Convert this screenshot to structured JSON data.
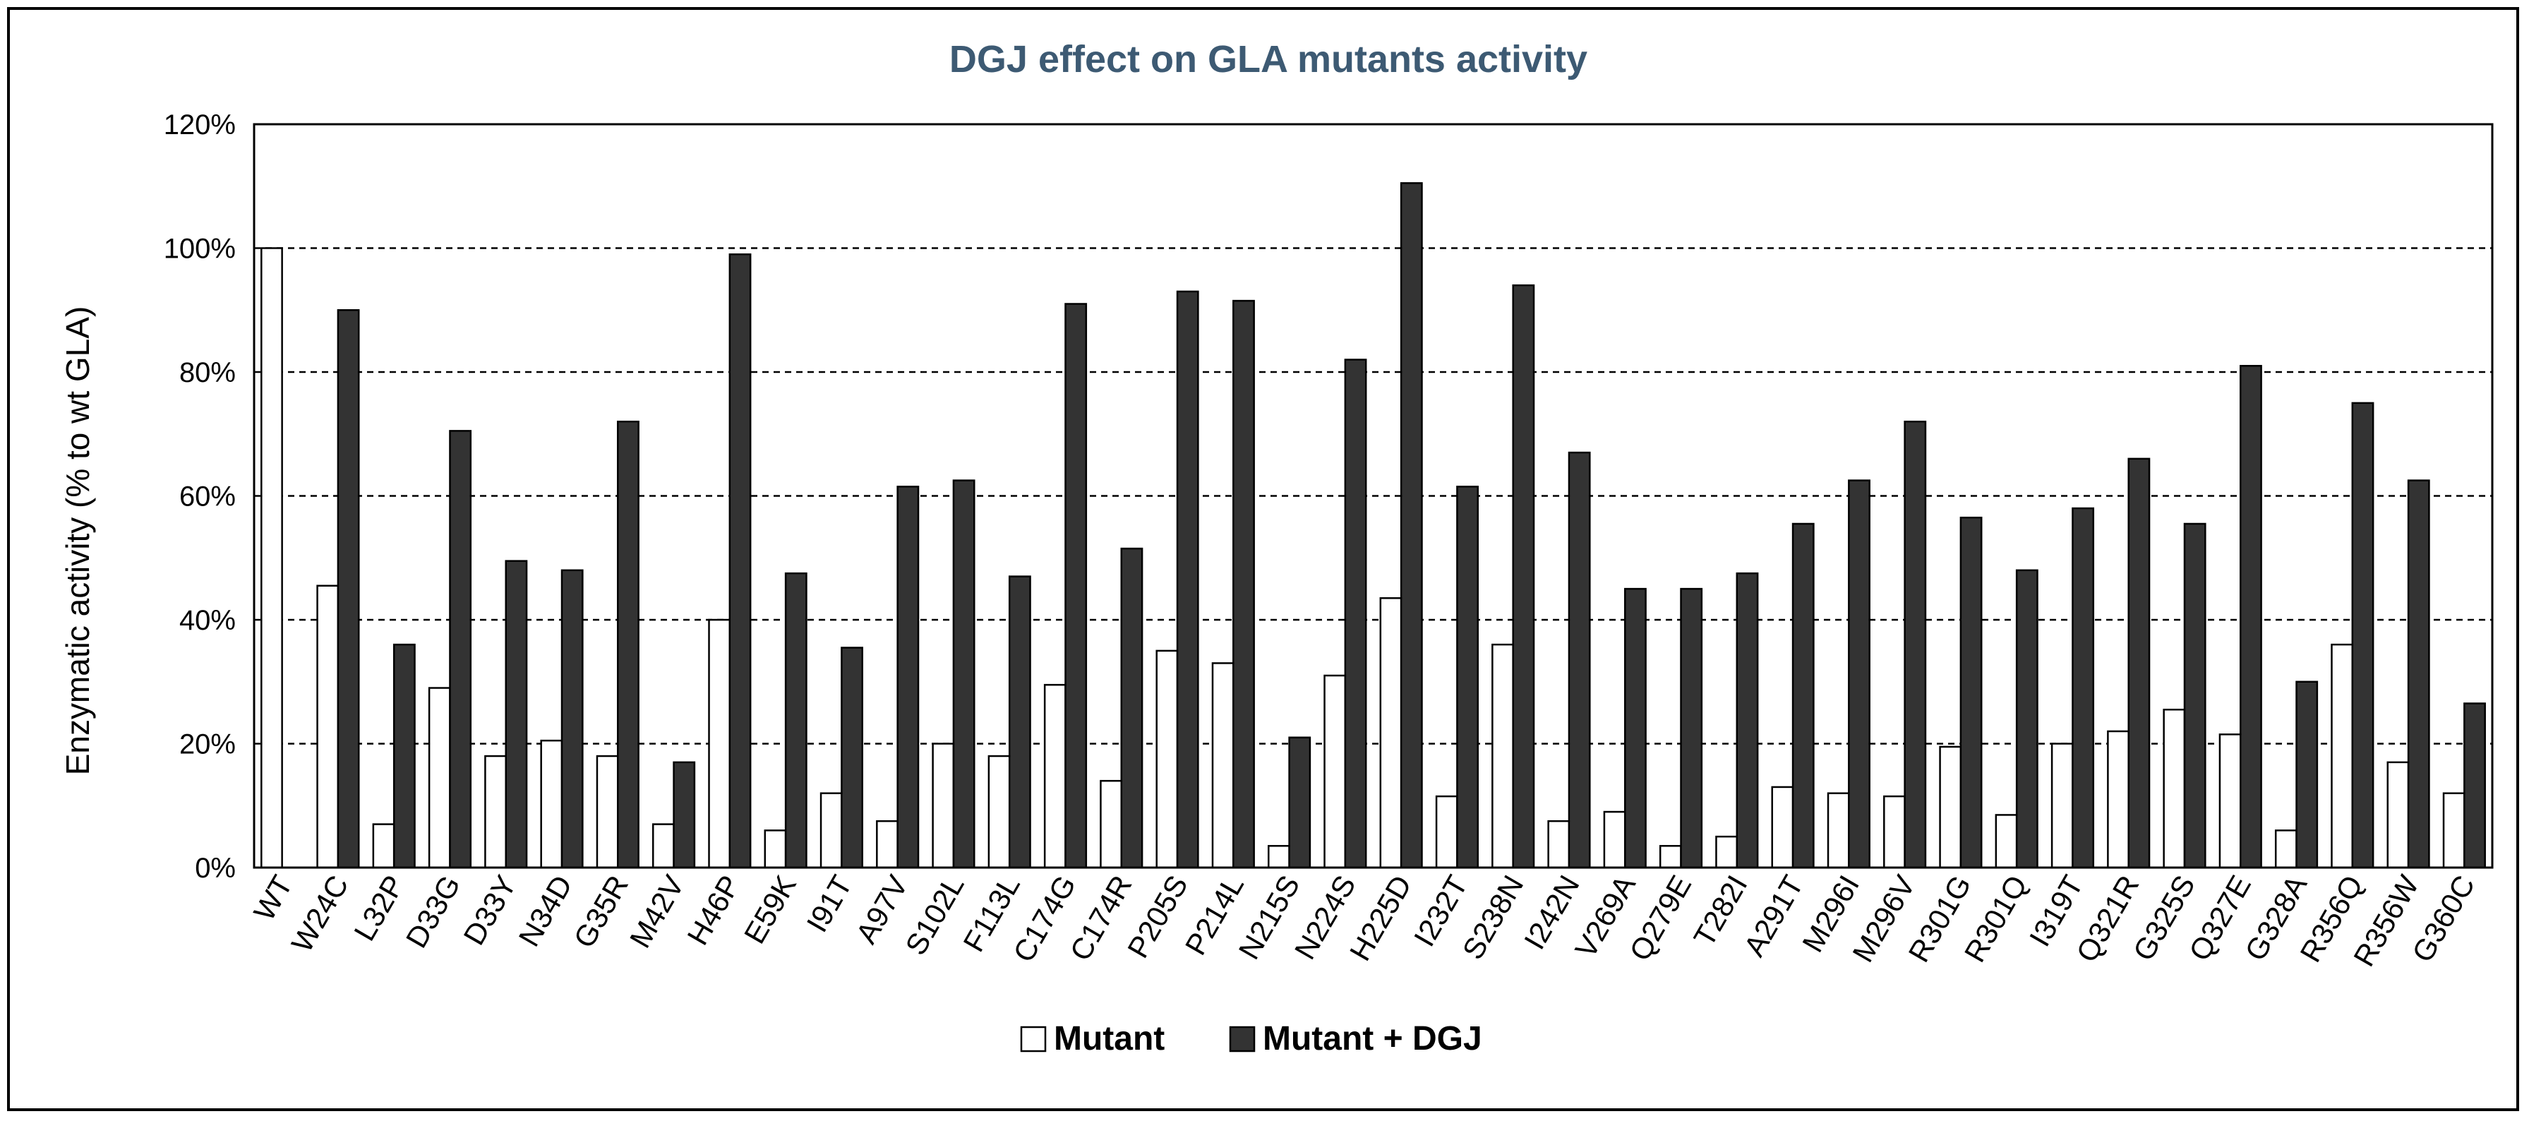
{
  "chart_data": {
    "type": "bar",
    "title": "DGJ effect on GLA mutants activity",
    "title_color": "#3d5a73",
    "ylabel": "Enzymatic activity (% to wt GLA)",
    "xlabel": "",
    "ylim": [
      0,
      120
    ],
    "yticks": [
      0,
      20,
      40,
      60,
      80,
      100,
      120
    ],
    "ytick_labels": [
      "0%",
      "20%",
      "40%",
      "60%",
      "80%",
      "100%",
      "120%"
    ],
    "grid": "horizontal dashed",
    "legend_position": "bottom",
    "categories": [
      "WT",
      "W24C",
      "L32P",
      "D33G",
      "D33Y",
      "N34D",
      "G35R",
      "M42V",
      "H46P",
      "E59K",
      "I91T",
      "A97V",
      "S102L",
      "F113L",
      "C174G",
      "C174R",
      "P205S",
      "P214L",
      "N215S",
      "N224S",
      "H225D",
      "I232T",
      "S238N",
      "I242N",
      "V269A",
      "Q279E",
      "T282I",
      "A291T",
      "M296I",
      "M296V",
      "R301G",
      "R301Q",
      "I319T",
      "Q321R",
      "G325S",
      "Q327E",
      "G328A",
      "R356Q",
      "R356W",
      "G360C"
    ],
    "series": [
      {
        "name": "Mutant",
        "color": "#ffffff",
        "values": [
          100,
          45.5,
          7,
          29,
          18,
          20.5,
          18,
          7,
          40,
          6,
          12,
          7.5,
          20,
          18,
          29.5,
          14,
          35,
          33,
          3.5,
          31,
          43.5,
          11.5,
          36,
          7.5,
          9,
          3.5,
          5,
          13,
          12,
          11.5,
          19.5,
          8.5,
          20,
          22,
          25.5,
          21.5,
          6,
          36,
          17,
          12
        ]
      },
      {
        "name": "Mutant + DGJ",
        "color": "#333333",
        "values": [
          null,
          90,
          36,
          70.5,
          49.5,
          48,
          72,
          17,
          99,
          47.5,
          35.5,
          61.5,
          62.5,
          47,
          91,
          51.5,
          93,
          91.5,
          21,
          82,
          110.5,
          61.5,
          94,
          67,
          45,
          45,
          47.5,
          55.5,
          62.5,
          72,
          56.5,
          48,
          58,
          66,
          55.5,
          81,
          30,
          75,
          62.5,
          26.5
        ]
      }
    ]
  }
}
